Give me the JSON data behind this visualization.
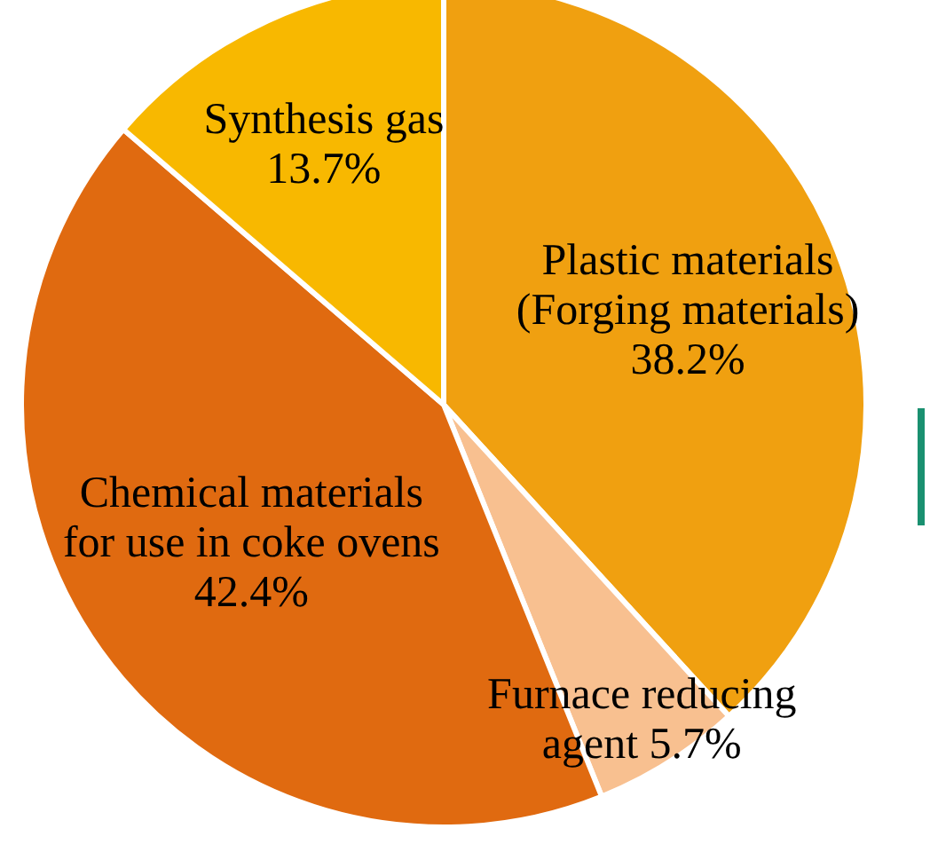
{
  "chart_data": {
    "type": "pie",
    "categories": [
      "Plastic materials (Forging materials)",
      "Furnace reducing agent",
      "Chemical materials for use in coke ovens",
      "Synthesis gas"
    ],
    "values": [
      38.2,
      5.7,
      42.4,
      13.7
    ],
    "value_labels": [
      "38.2%",
      "5.7%",
      "42.4%",
      "13.7%"
    ],
    "colors": [
      "#f0a010",
      "#f8c090",
      "#e06a10",
      "#f8b800"
    ],
    "legend": false
  }
}
